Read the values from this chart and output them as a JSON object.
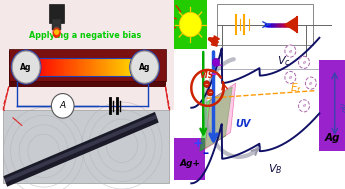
{
  "fig_width": 3.45,
  "fig_height": 1.89,
  "dpi": 100,
  "left_panel": {
    "bg_color": "#f5e8e8",
    "title_text": "Applying a negative bias",
    "title_color": "#00cc00",
    "plate_color": "#7a1010",
    "ag_label": "Ag",
    "ammeter_label": "A",
    "circuit_color": "#1144bb",
    "dashed_color": "#dd2222",
    "sem_bg": "#c8ccd0"
  },
  "right_panel": {
    "bg_color": "#f0d8f0",
    "sun_bg": "#22cc00",
    "ag_plus_bg": "#9922cc",
    "ag_right_bg": "#9922cc",
    "curve_color": "#111166",
    "ef_color": "#ff9900",
    "battery_color": "#ffaa00",
    "circuit_bg": "#f0d8f0",
    "circuit_border": "#888888",
    "diode_blue": "#2244cc",
    "diode_red": "#cc2200",
    "arrow_blue": "#2255dd",
    "arrow_green": "#00aa00",
    "arrow_dark_red": "#cc2200",
    "vis_green": "#00cc00",
    "vis_pink": "#ff88cc",
    "electron_border": "#aa66aa",
    "gvoc_color": "#3344aa",
    "gray_arrow": "#9999aa"
  }
}
